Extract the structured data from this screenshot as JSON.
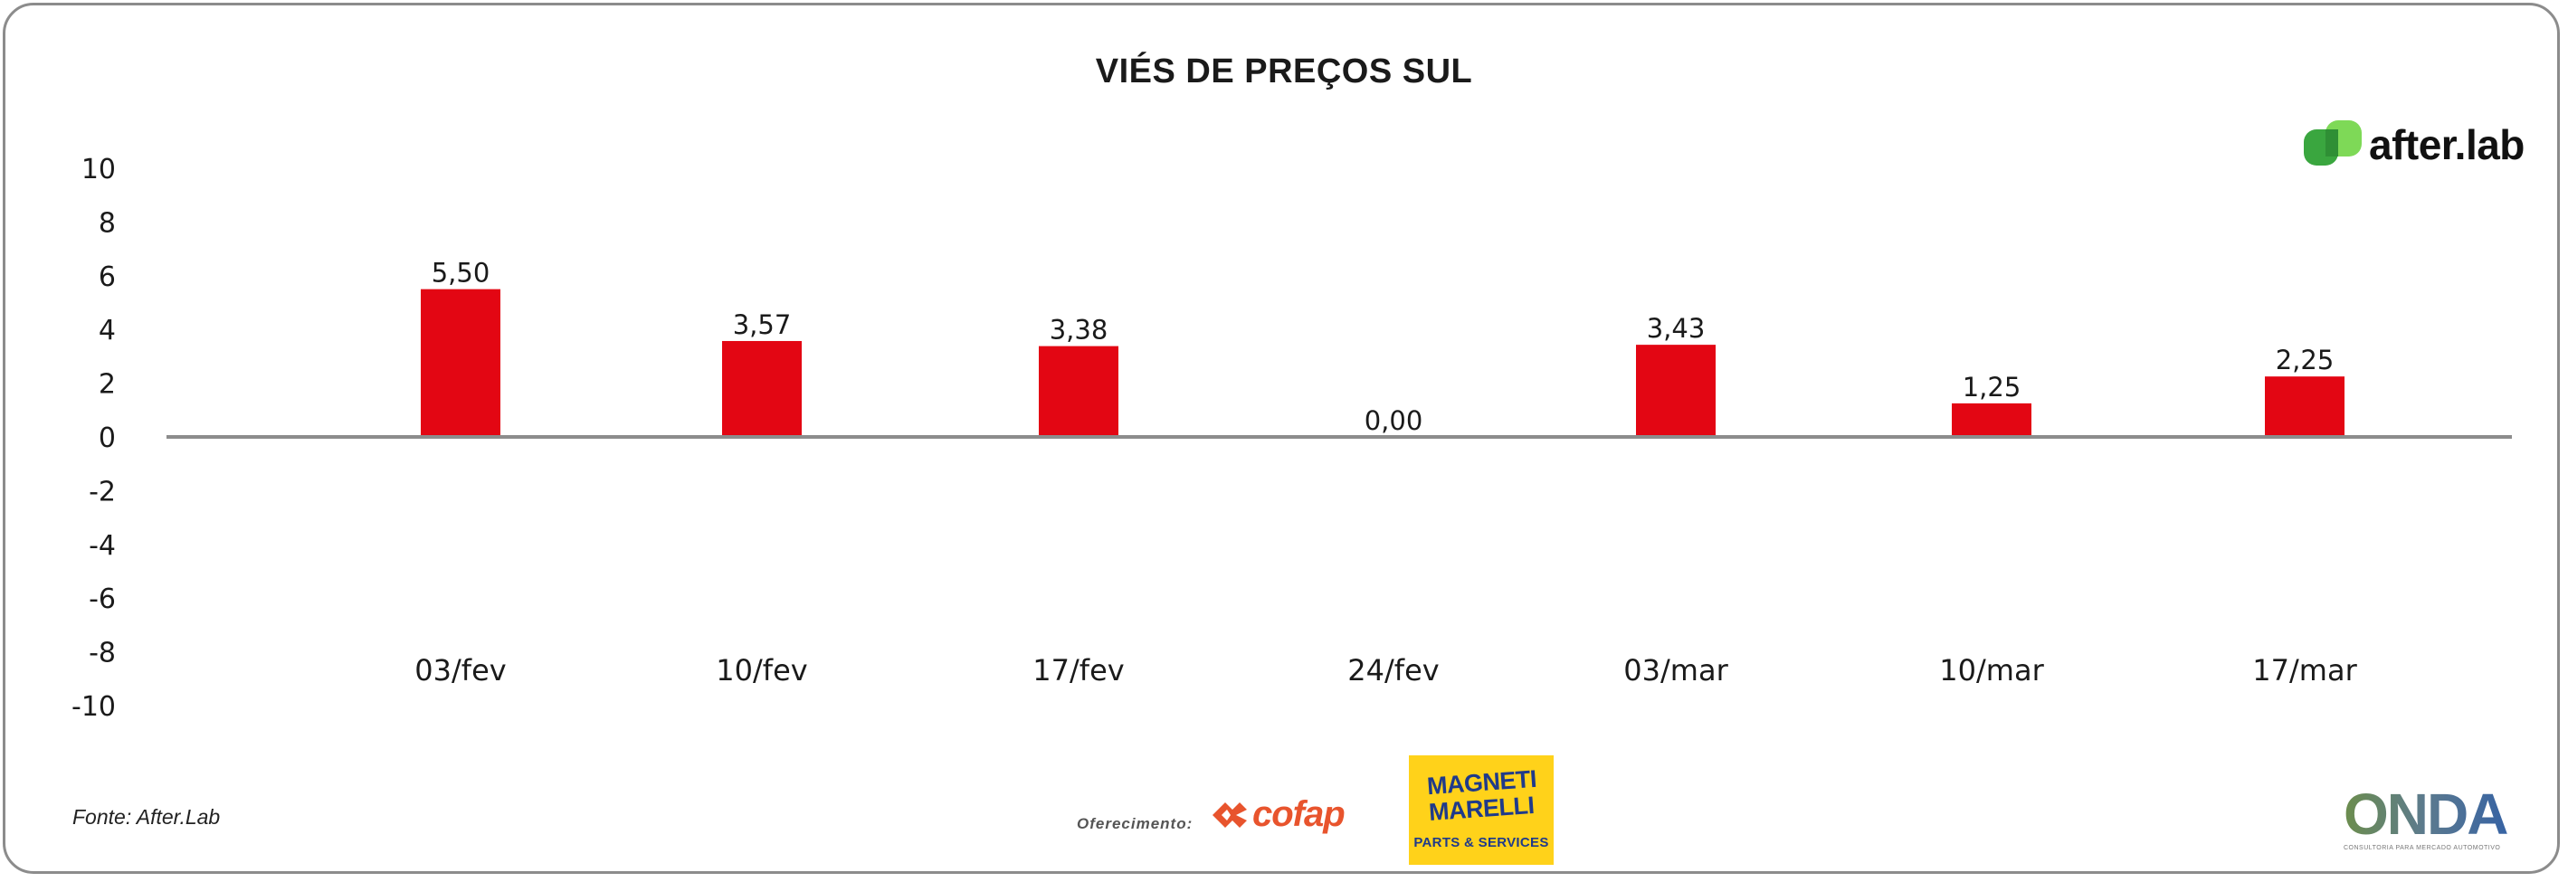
{
  "title": "VIÉS DE PREÇOS SUL",
  "brand": {
    "logo_text": "after.lab",
    "icon": "after-lab-logo-icon",
    "accent": "#5cbf3a"
  },
  "footer": {
    "source": "Fonte: After.Lab",
    "offer_label": "Oferecimento:",
    "sponsor1": {
      "name": "cofap",
      "color": "#e8542d"
    },
    "sponsor2": {
      "line1": "MAGNETI",
      "line2": "MARELLI",
      "sub": "PARTS & SERVICES",
      "bg": "#ffd21a",
      "fg": "#1f3a8a"
    },
    "onda": {
      "name": "ONDA",
      "tagline": "CONSULTORIA PARA MERCADO AUTOMOTIVO"
    }
  },
  "chart_data": {
    "type": "bar",
    "title": "VIÉS DE PREÇOS SUL",
    "categories": [
      "03/fev",
      "10/fev",
      "17/fev",
      "24/fev",
      "03/mar",
      "10/mar",
      "17/mar"
    ],
    "series": [
      {
        "values": [
          5.5,
          3.57,
          3.38,
          0.0,
          3.43,
          1.25,
          2.25
        ],
        "labels": [
          "5,50",
          "3,57",
          "3,38",
          "0,00",
          "3,43",
          "1,25",
          "2,25"
        ],
        "color": "#e30613"
      }
    ],
    "ylim": [
      -10,
      10
    ],
    "yticks": [
      10,
      8,
      6,
      4,
      2,
      0,
      -2,
      -4,
      -6,
      -8,
      -10
    ],
    "ytick_labels": [
      "10",
      "8",
      "6",
      "4",
      "2",
      "0",
      "-2",
      "-4",
      "-6",
      "-8",
      "-10"
    ],
    "grid": false,
    "legend": "none",
    "xlabel": "",
    "ylabel": ""
  }
}
